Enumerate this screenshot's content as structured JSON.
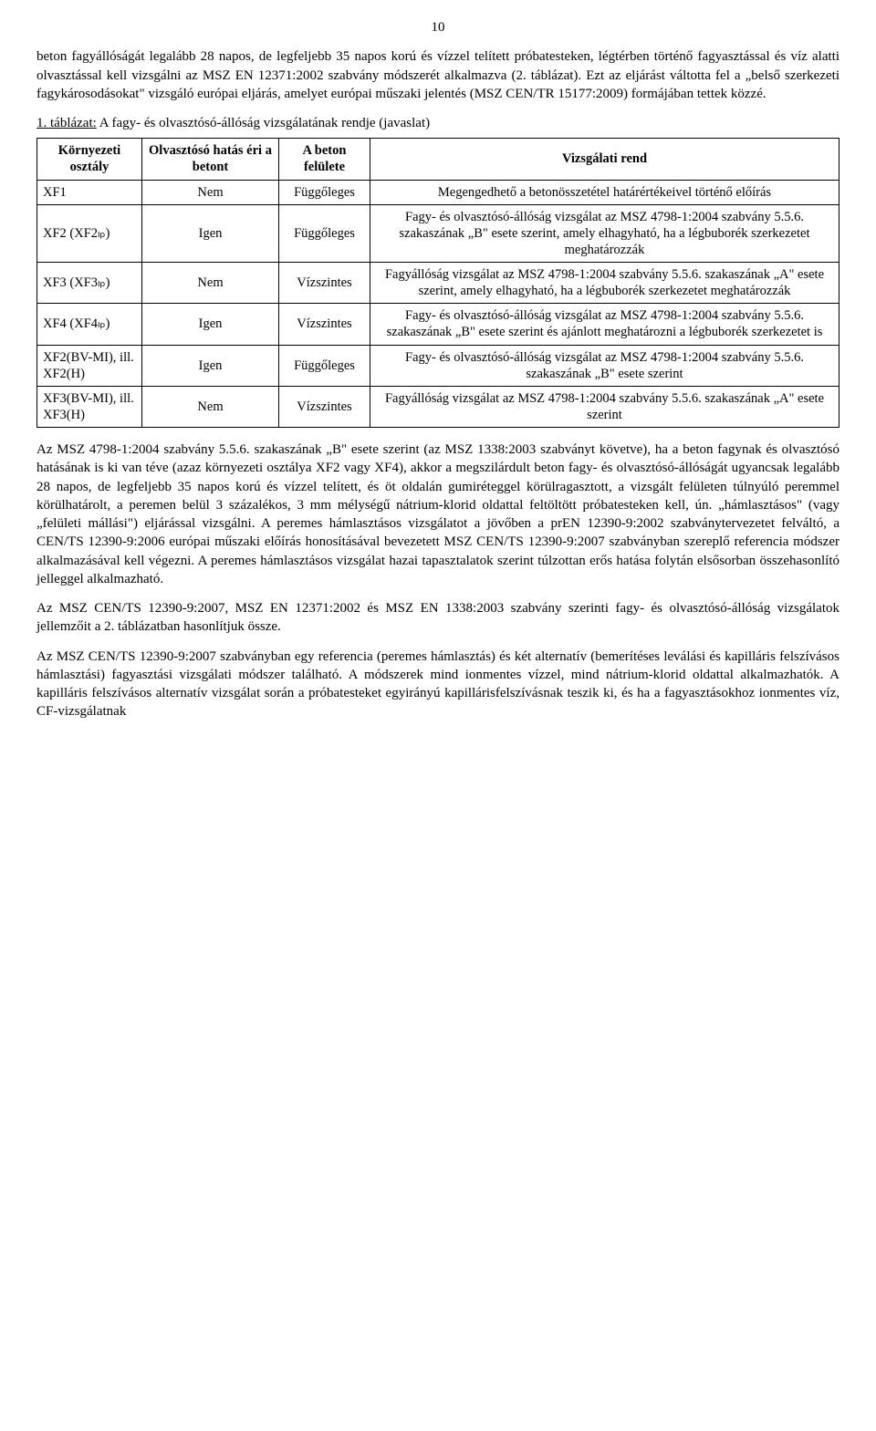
{
  "page_number": "10",
  "p1": "beton fagyállóságát legalább 28 napos, de legfeljebb 35 napos korú és vízzel telített próbatesteken, légtérben történő fagyasztással és víz alatti olvasztással kell vizsgálni az MSZ EN 12371:2002 szabvány módszerét alkalmazva (2. táblázat). Ezt az eljárást váltotta fel a „belső szerkezeti fagykárosodásokat\" vizsgáló európai eljárás, amelyet európai műszaki jelentés (MSZ CEN/TR 15177:2009) formájában tettek közzé.",
  "table_caption_prefix": "1. táblázat:",
  "table_caption_rest": " A fagy- és olvasztósó-állóság vizsgálatának rendje (javaslat)",
  "table": {
    "headers": {
      "env": "Környezeti osztály",
      "effect": "Olvasztósó hatás éri a betont",
      "surface": "A beton felülete",
      "test": "Vizsgálati rend"
    },
    "rows": [
      {
        "env": "XF1",
        "effect": "Nem",
        "surface": "Függőleges",
        "test": "Megengedhető a betonösszetétel határértékeivel történő előírás"
      },
      {
        "env": "XF2 (XF2ₗₚ)",
        "effect": "Igen",
        "surface": "Függőleges",
        "test": "Fagy- és olvasztósó-állóság vizsgálat az MSZ 4798-1:2004 szabvány 5.5.6. szakaszának „B\" esete szerint, amely elhagyható, ha a légbuborék szerkezetet meghatározzák"
      },
      {
        "env": "XF3 (XF3ₗₚ)",
        "effect": "Nem",
        "surface": "Vízszintes",
        "test": "Fagyállóság vizsgálat az MSZ 4798-1:2004 szabvány 5.5.6. szakaszának „A\" esete szerint, amely elhagyható, ha a légbuborék szerkezetet meghatározzák"
      },
      {
        "env": "XF4 (XF4ₗₚ)",
        "effect": "Igen",
        "surface": "Vízszintes",
        "test": "Fagy- és olvasztósó-állóság vizsgálat az MSZ 4798-1:2004 szabvány 5.5.6. szakaszának „B\" esete szerint és ajánlott meghatározni a légbuborék szerkezetet is"
      },
      {
        "env": "XF2(BV-MI), ill. XF2(H)",
        "effect": "Igen",
        "surface": "Függőleges",
        "test": "Fagy- és olvasztósó-állóság vizsgálat az MSZ 4798-1:2004 szabvány 5.5.6. szakaszának „B\" esete szerint"
      },
      {
        "env": "XF3(BV-MI), ill. XF3(H)",
        "effect": "Nem",
        "surface": "Vízszintes",
        "test": "Fagyállóság vizsgálat az MSZ 4798-1:2004 szabvány 5.5.6. szakaszának „A\" esete szerint"
      }
    ]
  },
  "p2": "Az MSZ 4798-1:2004 szabvány 5.5.6. szakaszának „B\" esete szerint (az MSZ 1338:2003 szabványt követve), ha a beton fagynak és olvasztósó hatásának is ki van téve (azaz környezeti osztálya XF2 vagy XF4), akkor a megszilárdult beton fagy- és olvasztósó-állóságát ugyancsak legalább 28 napos, de legfeljebb 35 napos korú és vízzel telített, és öt oldalán gumiréteggel körülragasztott, a vizsgált felületen túlnyúló peremmel körülhatárolt, a peremen belül 3 százalékos, 3 mm mélységű nátrium-klorid oldattal feltöltött próbatesteken kell, ún. „hámlasztásos\" (vagy „felületi mállási\") eljárással vizsgálni. A peremes hámlasztásos vizsgálatot a jövőben a prEN 12390-9:2002 szabványtervezetet felváltó, a CEN/TS 12390-9:2006 európai műszaki előírás honosításával bevezetett MSZ CEN/TS 12390-9:2007 szabványban szereplő referencia módszer alkalmazásával kell végezni. A peremes hámlasztásos vizsgálat hazai tapasztalatok szerint túlzottan erős hatása folytán elsősorban összehasonlító jelleggel alkalmazható.",
  "p3": "Az MSZ CEN/TS 12390-9:2007, MSZ EN 12371:2002 és MSZ EN 1338:2003 szabvány szerinti fagy- és olvasztósó-állóság vizsgálatok jellemzőit a 2. táblázatban hasonlítjuk össze.",
  "p4": "Az MSZ CEN/TS 12390-9:2007 szabványban egy referencia (peremes hámlasztás) és két alternatív (bemerítéses leválási és kapilláris felszívásos hámlasztási) fagyasztási vizsgálati módszer található. A módszerek mind ionmentes vízzel, mind nátrium-klorid oldattal alkalmazhatók. A kapilláris felszívásos alternatív vizsgálat során a próbatesteket egyirányú kapillárisfelszívásnak teszik ki, és ha a fagyasztásokhoz ionmentes víz, CF-vizsgálatnak"
}
